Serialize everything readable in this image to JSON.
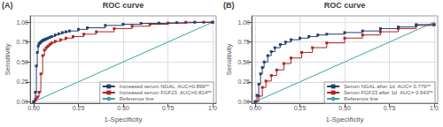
{
  "chart_data": [
    {
      "type": "line",
      "title": "ROC curve",
      "xlabel": "1-Specificity",
      "ylabel": "Sensitivity",
      "annotations": [
        "(A)"
      ],
      "xlim": [
        -0.02,
        1.02
      ],
      "ylim": [
        -0.02,
        1.08
      ],
      "xticks": [
        {
          "value": 0,
          "label": "0.00"
        },
        0.25,
        {
          "value": 0.5,
          "label": "0.50"
        },
        0.75,
        {
          "value": 1,
          "label": "1.0"
        }
      ],
      "yticks": [
        {
          "value": 0,
          "label": "0.00"
        },
        0.25,
        {
          "value": 0.5,
          "label": "0.50"
        },
        0.75,
        {
          "value": 1,
          "label": "1.00"
        }
      ],
      "grid": true,
      "legend": "lower right",
      "series": [
        {
          "name": "Increased serum NGAL  AUC=0.899**",
          "type": "step",
          "marker": "square",
          "color": "#253d6e",
          "x": [
            0.0,
            0.01,
            0.015,
            0.02,
            0.025,
            0.03,
            0.035,
            0.04,
            0.045,
            0.05,
            0.055,
            0.06,
            0.065,
            0.07,
            0.08,
            0.09,
            0.1,
            0.12,
            0.14,
            0.16,
            0.18,
            0.2,
            0.25,
            0.3,
            0.4,
            0.5,
            0.6,
            0.7,
            0.8,
            0.9,
            1.0
          ],
          "values": [
            0.0,
            0.12,
            0.45,
            0.62,
            0.7,
            0.73,
            0.74,
            0.75,
            0.76,
            0.77,
            0.775,
            0.78,
            0.785,
            0.79,
            0.8,
            0.81,
            0.82,
            0.84,
            0.855,
            0.87,
            0.88,
            0.89,
            0.91,
            0.93,
            0.96,
            0.975,
            0.985,
            0.99,
            0.995,
            1.0,
            1.0
          ]
        },
        {
          "name": "Increased serum FGF23  AUC=0.814**",
          "type": "step",
          "marker": "square",
          "color": "#b22222",
          "x": [
            0.0,
            0.01,
            0.02,
            0.03,
            0.04,
            0.05,
            0.06,
            0.07,
            0.08,
            0.09,
            0.1,
            0.12,
            0.15,
            0.18,
            0.22,
            0.28,
            0.35,
            0.45,
            0.55,
            0.65,
            0.75,
            0.85,
            0.95,
            1.0
          ],
          "values": [
            0.0,
            0.03,
            0.06,
            0.12,
            0.35,
            0.58,
            0.65,
            0.68,
            0.7,
            0.72,
            0.74,
            0.76,
            0.78,
            0.8,
            0.82,
            0.85,
            0.88,
            0.92,
            0.95,
            0.975,
            0.99,
            1.0,
            1.0,
            1.0
          ]
        },
        {
          "name": "Reference line",
          "type": "line",
          "color": "#40a0a0",
          "x": [
            0,
            1
          ],
          "values": [
            0,
            1
          ]
        }
      ]
    },
    {
      "type": "line",
      "title": "ROC curve",
      "xlabel": "1-Specificity",
      "ylabel": "Sensitivity",
      "annotations": [
        "(B)"
      ],
      "xlim": [
        -0.02,
        1.02
      ],
      "ylim": [
        -0.02,
        1.08
      ],
      "xticks": [
        {
          "value": 0,
          "label": "0.00"
        },
        0.25,
        {
          "value": 0.5,
          "label": "0.50"
        },
        0.75,
        {
          "value": 1,
          "label": "1.0"
        }
      ],
      "yticks": [
        {
          "value": 0,
          "label": "0.00"
        },
        0.25,
        {
          "value": 0.5,
          "label": "0.50"
        },
        0.75,
        {
          "value": 1,
          "label": "1.00"
        }
      ],
      "grid": true,
      "legend": "lower right",
      "series": [
        {
          "name": "Serum NGAL after 1d  AUC= 0.779**",
          "type": "step",
          "marker": "square",
          "color": "#253d6e",
          "x": [
            0.0,
            0.01,
            0.02,
            0.03,
            0.04,
            0.05,
            0.07,
            0.09,
            0.11,
            0.14,
            0.17,
            0.2,
            0.25,
            0.3,
            0.35,
            0.4,
            0.5,
            0.6,
            0.7,
            0.8,
            0.9,
            1.0
          ],
          "values": [
            0.0,
            0.08,
            0.22,
            0.35,
            0.43,
            0.5,
            0.58,
            0.63,
            0.68,
            0.72,
            0.75,
            0.78,
            0.8,
            0.82,
            0.84,
            0.85,
            0.87,
            0.89,
            0.92,
            0.94,
            0.97,
            0.97
          ]
        },
        {
          "name": "Serum FGF23 after 1d  AUC= 0.643**",
          "type": "step",
          "marker": "square",
          "color": "#b22222",
          "x": [
            0.0,
            0.02,
            0.04,
            0.06,
            0.09,
            0.12,
            0.16,
            0.2,
            0.26,
            0.32,
            0.4,
            0.5,
            0.6,
            0.7,
            0.8,
            0.9,
            1.0
          ],
          "values": [
            0.0,
            0.07,
            0.18,
            0.26,
            0.33,
            0.4,
            0.48,
            0.55,
            0.62,
            0.68,
            0.74,
            0.8,
            0.84,
            0.88,
            0.92,
            0.96,
            0.97
          ]
        },
        {
          "name": "Reference line",
          "type": "line",
          "color": "#40a0a0",
          "x": [
            0,
            1
          ],
          "values": [
            0,
            1
          ]
        }
      ]
    }
  ]
}
